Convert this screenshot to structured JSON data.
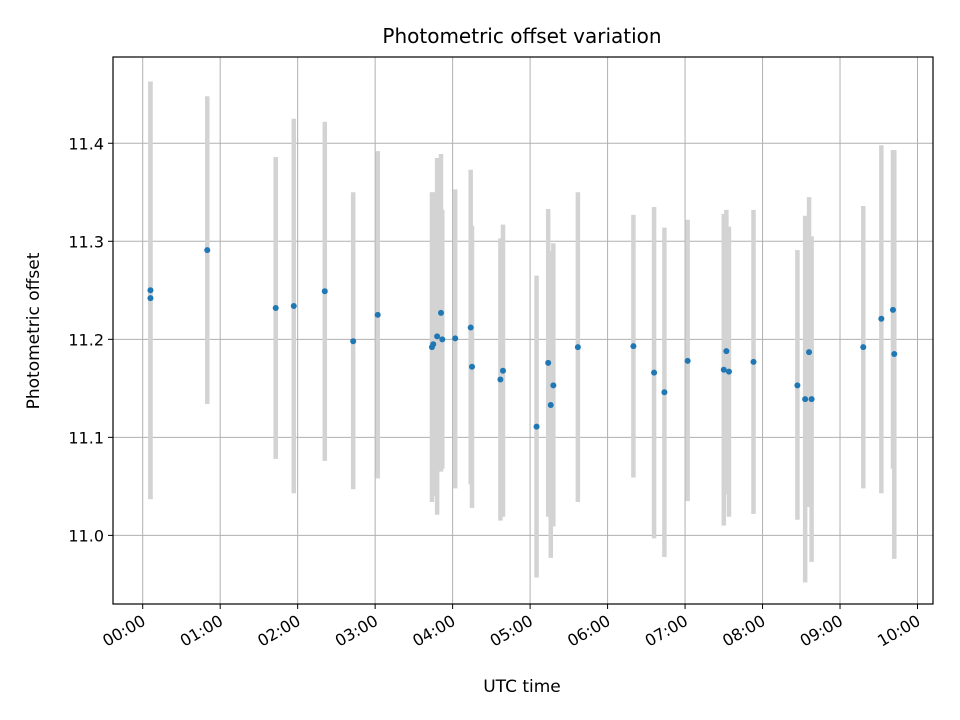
{
  "chart_data": {
    "type": "scatter",
    "title": "Photometric offset variation",
    "xlabel": "UTC time",
    "ylabel": "Photometric offset",
    "x_unit": "hours",
    "xlim": [
      "23:37",
      "10:12"
    ],
    "ylim": [
      10.93,
      11.488
    ],
    "x_ticks": [
      "00:00",
      "01:00",
      "02:00",
      "03:00",
      "04:00",
      "05:00",
      "06:00",
      "07:00",
      "08:00",
      "09:00",
      "10:00"
    ],
    "y_ticks": [
      "11.0",
      "11.1",
      "11.2",
      "11.3",
      "11.4"
    ],
    "grid": true,
    "colors": {
      "points": "#1f77b4",
      "errorbars": "#d3d3d3",
      "grid": "#b0b0b0"
    },
    "series": [
      {
        "points": [
          {
            "x": "00:06",
            "y": 11.25,
            "lo": 11.037,
            "hi": 11.463
          },
          {
            "x": "00:06",
            "y": 11.242,
            "lo": 11.037,
            "hi": 11.463
          },
          {
            "x": "00:50",
            "y": 11.291,
            "lo": 11.134,
            "hi": 11.448
          },
          {
            "x": "01:43",
            "y": 11.232,
            "lo": 11.078,
            "hi": 11.386
          },
          {
            "x": "01:57",
            "y": 11.234,
            "lo": 11.043,
            "hi": 11.425
          },
          {
            "x": "02:21",
            "y": 11.249,
            "lo": 11.076,
            "hi": 11.422
          },
          {
            "x": "02:43",
            "y": 11.198,
            "lo": 11.047,
            "hi": 11.35
          },
          {
            "x": "03:02",
            "y": 11.225,
            "lo": 11.058,
            "hi": 11.392
          },
          {
            "x": "03:44",
            "y": 11.192,
            "lo": 11.034,
            "hi": 11.35
          },
          {
            "x": "03:45",
            "y": 11.195,
            "lo": 11.04,
            "hi": 11.35
          },
          {
            "x": "03:48",
            "y": 11.203,
            "lo": 11.021,
            "hi": 11.385
          },
          {
            "x": "03:51",
            "y": 11.227,
            "lo": 11.065,
            "hi": 11.389
          },
          {
            "x": "03:52",
            "y": 11.2,
            "lo": 11.068,
            "hi": 11.332
          },
          {
            "x": "04:02",
            "y": 11.201,
            "lo": 11.048,
            "hi": 11.353
          },
          {
            "x": "04:14",
            "y": 11.212,
            "lo": 11.052,
            "hi": 11.373
          },
          {
            "x": "04:15",
            "y": 11.172,
            "lo": 11.028,
            "hi": 11.316
          },
          {
            "x": "04:37",
            "y": 11.159,
            "lo": 11.015,
            "hi": 11.303
          },
          {
            "x": "04:39",
            "y": 11.168,
            "lo": 11.019,
            "hi": 11.317
          },
          {
            "x": "05:05",
            "y": 11.111,
            "lo": 10.957,
            "hi": 11.265
          },
          {
            "x": "05:14",
            "y": 11.176,
            "lo": 11.019,
            "hi": 11.333
          },
          {
            "x": "05:16",
            "y": 11.133,
            "lo": 10.977,
            "hi": 11.29
          },
          {
            "x": "05:18",
            "y": 11.153,
            "lo": 11.009,
            "hi": 11.298
          },
          {
            "x": "05:37",
            "y": 11.192,
            "lo": 11.034,
            "hi": 11.35
          },
          {
            "x": "06:20",
            "y": 11.193,
            "lo": 11.059,
            "hi": 11.327
          },
          {
            "x": "06:36",
            "y": 11.166,
            "lo": 10.997,
            "hi": 11.335
          },
          {
            "x": "06:44",
            "y": 11.146,
            "lo": 10.978,
            "hi": 11.314
          },
          {
            "x": "07:02",
            "y": 11.178,
            "lo": 11.035,
            "hi": 11.322
          },
          {
            "x": "07:30",
            "y": 11.169,
            "lo": 11.01,
            "hi": 11.328
          },
          {
            "x": "07:32",
            "y": 11.188,
            "lo": 11.042,
            "hi": 11.332
          },
          {
            "x": "07:34",
            "y": 11.167,
            "lo": 11.019,
            "hi": 11.315
          },
          {
            "x": "07:53",
            "y": 11.177,
            "lo": 11.022,
            "hi": 11.332
          },
          {
            "x": "08:27",
            "y": 11.153,
            "lo": 11.016,
            "hi": 11.291
          },
          {
            "x": "08:33",
            "y": 11.139,
            "lo": 10.952,
            "hi": 11.326
          },
          {
            "x": "08:36",
            "y": 11.187,
            "lo": 11.029,
            "hi": 11.345
          },
          {
            "x": "08:38",
            "y": 11.139,
            "lo": 10.973,
            "hi": 11.305
          },
          {
            "x": "09:18",
            "y": 11.192,
            "lo": 11.048,
            "hi": 11.336
          },
          {
            "x": "09:32",
            "y": 11.221,
            "lo": 11.043,
            "hi": 11.398
          },
          {
            "x": "09:41",
            "y": 11.23,
            "lo": 11.068,
            "hi": 11.393
          },
          {
            "x": "09:42",
            "y": 11.185,
            "lo": 10.976,
            "hi": 11.393
          }
        ]
      }
    ]
  }
}
